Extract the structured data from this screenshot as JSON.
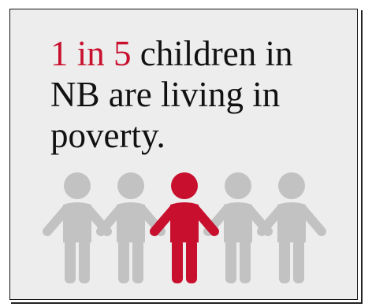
{
  "statistic": {
    "highlight": "1 in 5",
    "line1_rest": " children in",
    "line2": "NB are living in",
    "line3": "poverty."
  },
  "colors": {
    "background": "#ededed",
    "border": "#111111",
    "highlight": "#c8102e",
    "figure_default": "#c2c2c2",
    "figure_highlight": "#c8102e"
  },
  "figures": {
    "total": 5,
    "highlighted_index": 2,
    "icon": "person-holding-hands-icon"
  }
}
